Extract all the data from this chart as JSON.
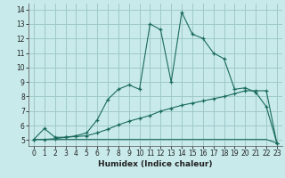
{
  "xlabel": "Humidex (Indice chaleur)",
  "bg_color": "#c8eaeb",
  "grid_color": "#a0c8c8",
  "line_color": "#1a6b5a",
  "line1_x": [
    0,
    1,
    2,
    3,
    4,
    5,
    6,
    7,
    8,
    9,
    10,
    11,
    12,
    13,
    14,
    15,
    16,
    17,
    18,
    19,
    20,
    21,
    22,
    23
  ],
  "line1_y": [
    5.05,
    5.8,
    5.2,
    5.2,
    5.3,
    5.5,
    6.4,
    7.8,
    8.5,
    8.8,
    8.5,
    13.0,
    12.6,
    9.0,
    13.8,
    12.3,
    12.0,
    11.0,
    10.6,
    8.5,
    8.6,
    8.3,
    7.3,
    4.8
  ],
  "line2_x": [
    0,
    1,
    2,
    3,
    4,
    5,
    6,
    7,
    8,
    9,
    10,
    11,
    12,
    13,
    14,
    15,
    16,
    17,
    18,
    19,
    20,
    21,
    22,
    23
  ],
  "line2_y": [
    5.05,
    5.05,
    5.1,
    5.2,
    5.25,
    5.3,
    5.5,
    5.75,
    6.05,
    6.3,
    6.5,
    6.7,
    7.0,
    7.2,
    7.4,
    7.55,
    7.7,
    7.85,
    8.0,
    8.2,
    8.4,
    8.4,
    8.4,
    4.8
  ],
  "line3_x": [
    0,
    1,
    2,
    3,
    4,
    5,
    6,
    7,
    8,
    9,
    10,
    11,
    12,
    13,
    14,
    15,
    16,
    17,
    18,
    19,
    20,
    21,
    22,
    23
  ],
  "line3_y": [
    5.05,
    5.05,
    5.05,
    5.05,
    5.05,
    5.05,
    5.05,
    5.05,
    5.05,
    5.05,
    5.05,
    5.05,
    5.05,
    5.05,
    5.05,
    5.05,
    5.05,
    5.05,
    5.05,
    5.05,
    5.05,
    5.05,
    5.05,
    4.8
  ],
  "xlim": [
    -0.5,
    23.5
  ],
  "ylim": [
    4.6,
    14.4
  ],
  "yticks": [
    5,
    6,
    7,
    8,
    9,
    10,
    11,
    12,
    13,
    14
  ],
  "xticks": [
    0,
    1,
    2,
    3,
    4,
    5,
    6,
    7,
    8,
    9,
    10,
    11,
    12,
    13,
    14,
    15,
    16,
    17,
    18,
    19,
    20,
    21,
    22,
    23
  ]
}
